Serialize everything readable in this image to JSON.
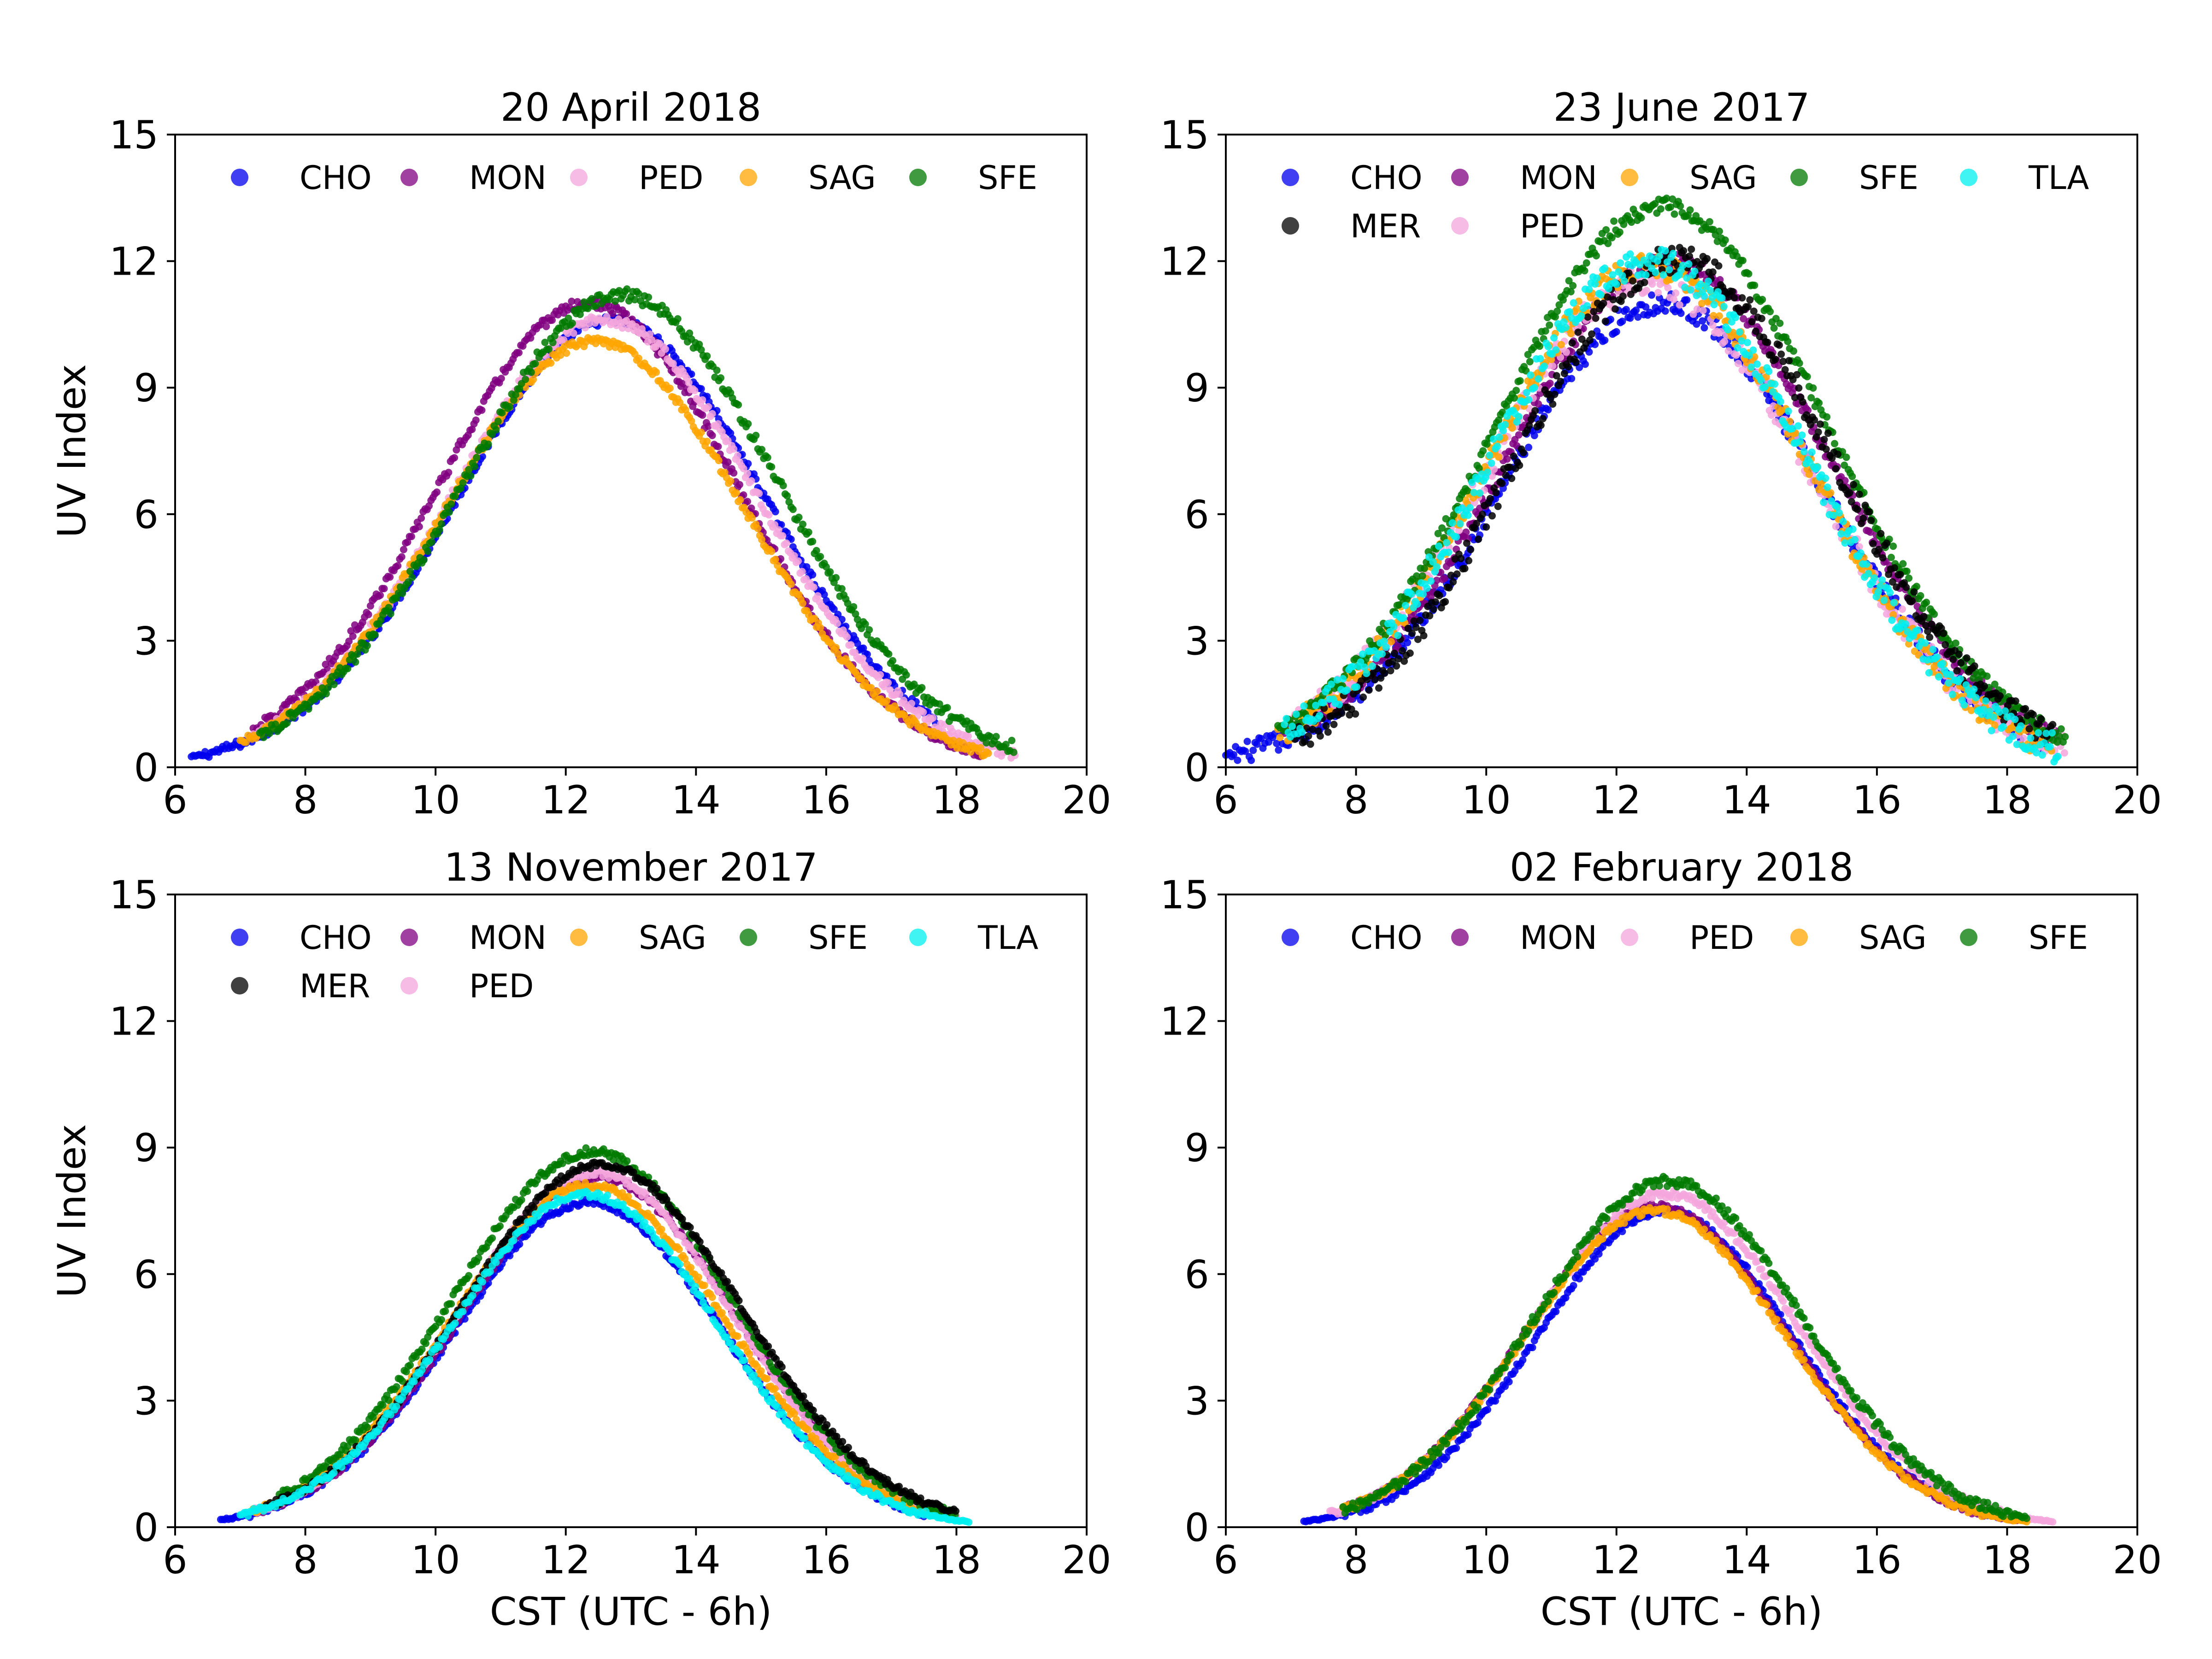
{
  "colors": {
    "CHO": "#0000ee",
    "MON": "#800080",
    "PED": "#f4a6dc",
    "SAG": "#ffa500",
    "SFE": "#007a00",
    "MER": "#000000",
    "TLA": "#00f0f0"
  },
  "chart_data": [
    {
      "type": "scatter",
      "title": "20 April 2018",
      "xlabel": "",
      "ylabel": "UV Index",
      "xlim": [
        6,
        20
      ],
      "ylim": [
        0,
        15
      ],
      "xticks": [
        "6",
        "8",
        "10",
        "12",
        "14",
        "16",
        "18",
        "20"
      ],
      "yticks": [
        "0",
        "3",
        "6",
        "9",
        "12",
        "15"
      ],
      "legend_location": "top",
      "legend": [
        "CHO",
        "MON",
        "PED",
        "SAG",
        "SFE"
      ],
      "series": [
        {
          "name": "CHO",
          "start": 6.25,
          "end": 17.7,
          "peak_time": 12.7,
          "peak": 10.6,
          "width": 2.35,
          "noise": 0.1
        },
        {
          "name": "MON",
          "start": 7.2,
          "end": 18.4,
          "peak_time": 12.35,
          "peak": 11.0,
          "width": 2.3,
          "noise": 0.12
        },
        {
          "name": "PED",
          "start": 7.2,
          "end": 18.9,
          "peak_time": 12.6,
          "peak": 10.6,
          "width": 2.35,
          "noise": 0.12
        },
        {
          "name": "SAG",
          "start": 7.0,
          "end": 18.5,
          "peak_time": 12.45,
          "peak": 10.1,
          "width": 2.3,
          "noise": 0.1
        },
        {
          "name": "SFE",
          "start": 7.3,
          "end": 18.9,
          "peak_time": 12.85,
          "peak": 11.2,
          "width": 2.4,
          "noise": 0.15
        }
      ]
    },
    {
      "type": "scatter",
      "title": "23 June 2017",
      "xlabel": "",
      "ylabel": "",
      "xlim": [
        6,
        20
      ],
      "ylim": [
        0,
        15
      ],
      "xticks": [
        "6",
        "8",
        "10",
        "12",
        "14",
        "16",
        "18",
        "20"
      ],
      "yticks": [
        "0",
        "3",
        "6",
        "9",
        "12",
        "15"
      ],
      "legend_location": "top",
      "legend": [
        "CHO",
        "MON",
        "SAG",
        "SFE",
        "TLA",
        "MER",
        "PED"
      ],
      "series": [
        {
          "name": "CHO",
          "start": 6.0,
          "end": 18.6,
          "peak_time": 12.7,
          "peak": 11.0,
          "width": 2.45,
          "noise": 0.25
        },
        {
          "name": "MON",
          "start": 6.9,
          "end": 18.8,
          "peak_time": 12.8,
          "peak": 12.0,
          "width": 2.5,
          "noise": 0.2
        },
        {
          "name": "PED",
          "start": 7.0,
          "end": 18.9,
          "peak_time": 12.5,
          "peak": 11.5,
          "width": 2.5,
          "noise": 0.35
        },
        {
          "name": "SAG",
          "start": 6.8,
          "end": 18.7,
          "peak_time": 12.5,
          "peak": 11.9,
          "width": 2.45,
          "noise": 0.3
        },
        {
          "name": "SFE",
          "start": 6.8,
          "end": 18.9,
          "peak_time": 12.7,
          "peak": 13.3,
          "width": 2.55,
          "noise": 0.2
        },
        {
          "name": "MER",
          "start": 7.0,
          "end": 18.7,
          "peak_time": 12.9,
          "peak": 12.0,
          "width": 2.45,
          "noise": 0.35
        },
        {
          "name": "TLA",
          "start": 6.9,
          "end": 18.8,
          "peak_time": 12.5,
          "peak": 12.0,
          "width": 2.45,
          "noise": 0.35
        }
      ]
    },
    {
      "type": "scatter",
      "title": "13 November 2017",
      "xlabel": "CST (UTC - 6h)",
      "ylabel": "UV Index",
      "xlim": [
        6,
        20
      ],
      "ylim": [
        0,
        15
      ],
      "xticks": [
        "6",
        "8",
        "10",
        "12",
        "14",
        "16",
        "18",
        "20"
      ],
      "yticks": [
        "0",
        "3",
        "6",
        "9",
        "12",
        "15"
      ],
      "legend_location": "top",
      "legend": [
        "CHO",
        "MON",
        "SAG",
        "SFE",
        "TLA",
        "MER",
        "PED"
      ],
      "series": [
        {
          "name": "CHO",
          "start": 6.7,
          "end": 17.6,
          "peak_time": 12.35,
          "peak": 7.7,
          "width": 2.05,
          "noise": 0.08
        },
        {
          "name": "MON",
          "start": 7.2,
          "end": 17.9,
          "peak_time": 12.5,
          "peak": 8.3,
          "width": 2.1,
          "noise": 0.08
        },
        {
          "name": "PED",
          "start": 7.2,
          "end": 18.0,
          "peak_time": 12.45,
          "peak": 8.4,
          "width": 2.1,
          "noise": 0.08
        },
        {
          "name": "SAG",
          "start": 7.2,
          "end": 17.9,
          "peak_time": 12.35,
          "peak": 8.1,
          "width": 2.1,
          "noise": 0.08
        },
        {
          "name": "SFE",
          "start": 7.6,
          "end": 18.0,
          "peak_time": 12.4,
          "peak": 8.9,
          "width": 2.15,
          "noise": 0.1
        },
        {
          "name": "MER",
          "start": 7.4,
          "end": 18.0,
          "peak_time": 12.55,
          "peak": 8.6,
          "width": 2.15,
          "noise": 0.08
        },
        {
          "name": "TLA",
          "start": 7.0,
          "end": 18.2,
          "peak_time": 12.3,
          "peak": 7.9,
          "width": 2.05,
          "noise": 0.08
        }
      ]
    },
    {
      "type": "scatter",
      "title": "02 February 2018",
      "xlabel": "CST (UTC - 6h)",
      "ylabel": "",
      "xlim": [
        6,
        20
      ],
      "ylim": [
        0,
        15
      ],
      "xticks": [
        "6",
        "8",
        "10",
        "12",
        "14",
        "16",
        "18",
        "20"
      ],
      "yticks": [
        "0",
        "3",
        "6",
        "9",
        "12",
        "15"
      ],
      "legend_location": "top",
      "legend": [
        "CHO",
        "MON",
        "PED",
        "SAG",
        "SFE"
      ],
      "series": [
        {
          "name": "CHO",
          "start": 7.2,
          "end": 17.7,
          "peak_time": 12.75,
          "peak": 7.5,
          "width": 1.95,
          "noise": 0.08
        },
        {
          "name": "MON",
          "start": 7.8,
          "end": 18.2,
          "peak_time": 12.6,
          "peak": 7.6,
          "width": 2.0,
          "noise": 0.08
        },
        {
          "name": "PED",
          "start": 7.6,
          "end": 18.7,
          "peak_time": 12.75,
          "peak": 7.9,
          "width": 2.05,
          "noise": 0.1
        },
        {
          "name": "SAG",
          "start": 7.8,
          "end": 18.3,
          "peak_time": 12.6,
          "peak": 7.5,
          "width": 2.0,
          "noise": 0.08
        },
        {
          "name": "SFE",
          "start": 7.8,
          "end": 18.3,
          "peak_time": 12.8,
          "peak": 8.2,
          "width": 2.05,
          "noise": 0.12
        }
      ]
    }
  ]
}
